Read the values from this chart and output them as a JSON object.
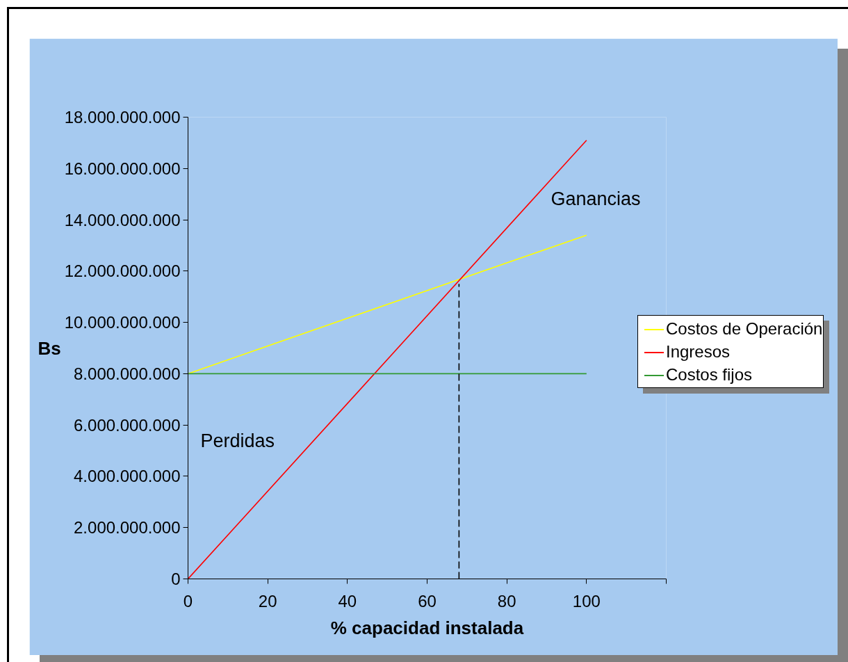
{
  "chart_data": {
    "type": "line",
    "xlabel": "% capacidad instalada",
    "ylabel": "Bs",
    "x": [
      0,
      100
    ],
    "xlim": [
      0,
      120
    ],
    "xticks": [
      0,
      20,
      40,
      60,
      80,
      100,
      {
        "value": 120,
        "label": null
      }
    ],
    "ylim": [
      0,
      18000000000
    ],
    "yticks": [
      {
        "value": 0,
        "label": "0"
      },
      {
        "value": 2000000000,
        "label": "2.000.000.000"
      },
      {
        "value": 4000000000,
        "label": "4.000.000.000"
      },
      {
        "value": 6000000000,
        "label": "6.000.000.000"
      },
      {
        "value": 8000000000,
        "label": "8.000.000.000"
      },
      {
        "value": 10000000000,
        "label": "10.000.000.000"
      },
      {
        "value": 12000000000,
        "label": "12.000.000.000"
      },
      {
        "value": 14000000000,
        "label": "14.000.000.000"
      },
      {
        "value": 16000000000,
        "label": "16.000.000.000"
      },
      {
        "value": 18000000000,
        "label": "18.000.000.000"
      }
    ],
    "series": [
      {
        "name": "Costos de Operación",
        "color": "#ffff00",
        "values": [
          8000000000,
          13400000000
        ]
      },
      {
        "name": "Ingresos",
        "color": "#ff0000",
        "values": [
          0,
          17100000000
        ]
      },
      {
        "name": "Costos fijos",
        "color": "#339933",
        "values": [
          8000000000,
          8000000000
        ]
      },
      {
        "color": "#000000",
        "x": [
          68,
          68
        ],
        "values": [
          0,
          11500000000
        ],
        "line_style": "dashed"
      }
    ],
    "annotations": [
      "Ganancias",
      "Perdidas"
    ],
    "legend": "right"
  }
}
